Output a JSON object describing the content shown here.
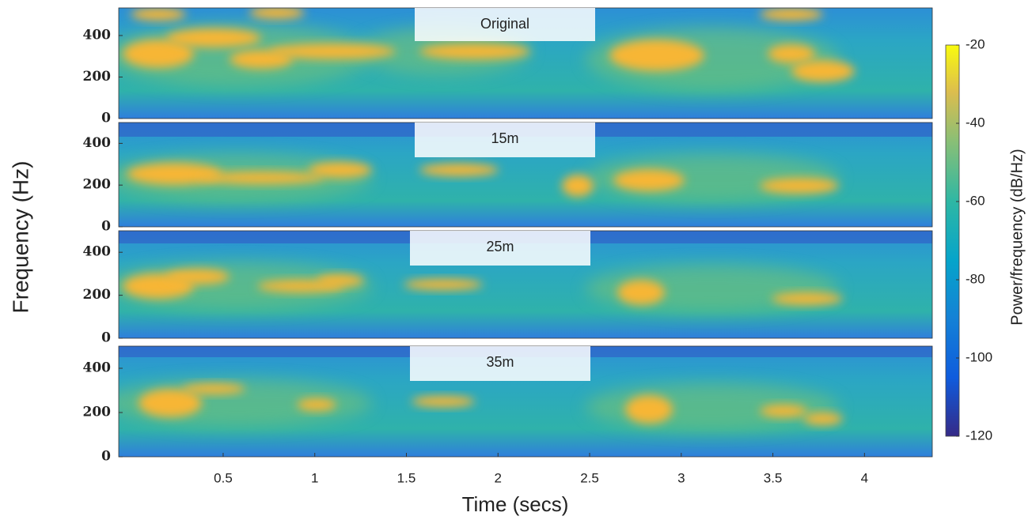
{
  "chart_data": {
    "type": "spectrogram",
    "xlabel": "Time (secs)",
    "ylabel": "Frequency (Hz)",
    "xlim": [
      -0.07,
      4.37
    ],
    "xticks": [
      0.5,
      1,
      1.5,
      2,
      2.5,
      3,
      3.5,
      4
    ],
    "colorbar": {
      "label": "Power/frequency (dB/Hz)",
      "lim": [
        -120,
        -20
      ],
      "ticks": [
        -20,
        -40,
        -60,
        -80,
        -100,
        -120
      ]
    },
    "panels": [
      {
        "title": "Original",
        "ylim": [
          0,
          533
        ],
        "yticks": [
          0,
          200,
          400
        ]
      },
      {
        "title": "15m",
        "ylim": [
          0,
          500
        ],
        "yticks": [
          0,
          200,
          400
        ]
      },
      {
        "title": "25m",
        "ylim": [
          0,
          500
        ],
        "yticks": [
          0,
          200,
          400
        ]
      },
      {
        "title": "35m",
        "ylim": [
          0,
          500
        ],
        "yticks": [
          0,
          200,
          400
        ]
      }
    ]
  }
}
